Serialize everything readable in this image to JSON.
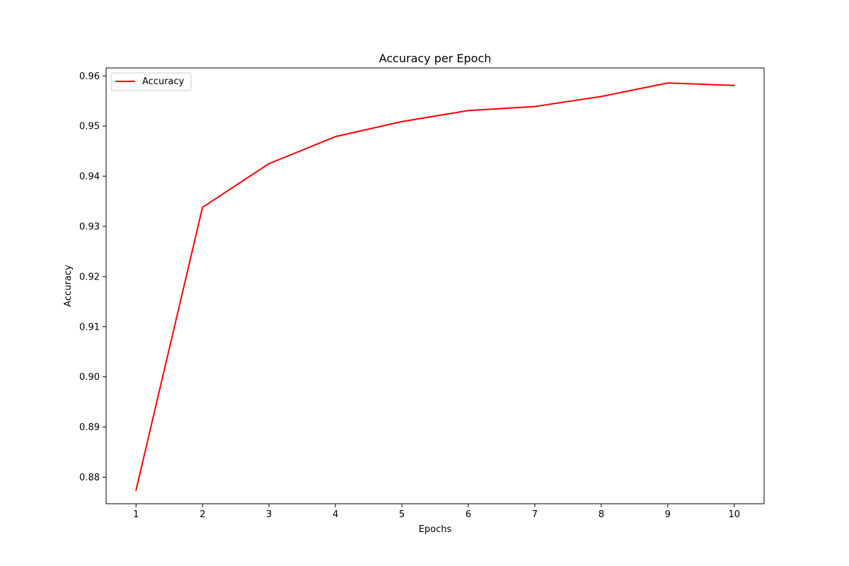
{
  "chart_data": {
    "type": "line",
    "title": "Accuracy per Epoch",
    "xlabel": "Epochs",
    "ylabel": "Accuracy",
    "x": [
      1,
      2,
      3,
      4,
      5,
      6,
      7,
      8,
      9,
      10
    ],
    "xticks": [
      "1",
      "2",
      "3",
      "4",
      "5",
      "6",
      "7",
      "8",
      "9",
      "10"
    ],
    "yticks": [
      "0.88",
      "0.89",
      "0.90",
      "0.91",
      "0.92",
      "0.93",
      "0.94",
      "0.95",
      "0.96"
    ],
    "ylim": [
      0.8747,
      0.9616
    ],
    "xlim": [
      0.55,
      10.45
    ],
    "grid": false,
    "legend_position": "top-left",
    "series": [
      {
        "name": "Accuracy",
        "color": "#ff0000",
        "values": [
          0.8774,
          0.9338,
          0.9425,
          0.9479,
          0.9509,
          0.9531,
          0.9539,
          0.9559,
          0.9586,
          0.9581
        ]
      }
    ]
  }
}
